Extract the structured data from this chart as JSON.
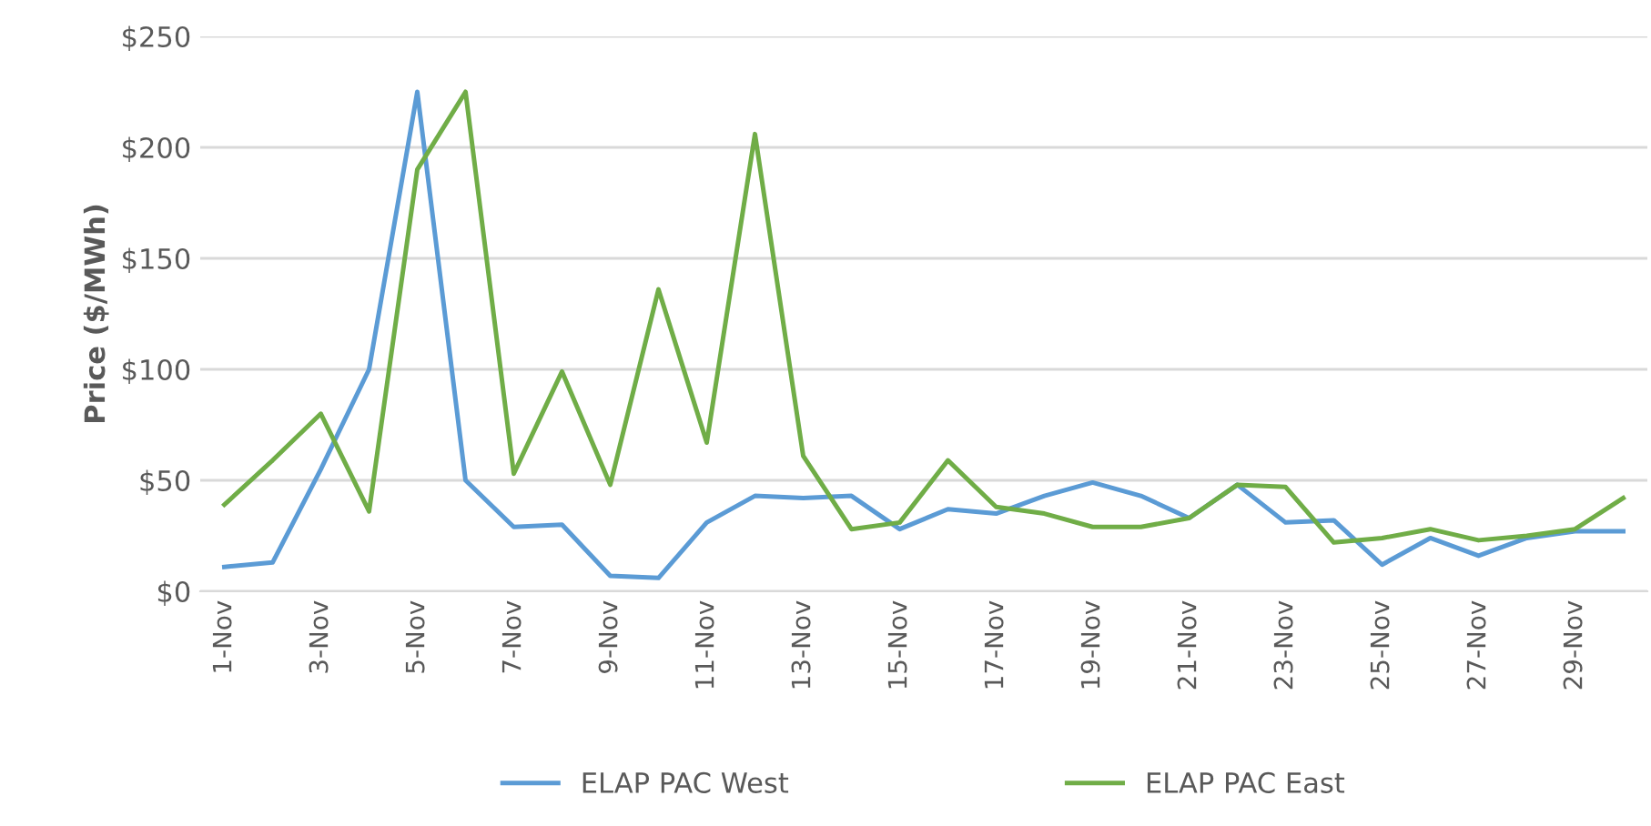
{
  "chart_data": {
    "type": "line",
    "ylabel": "Price ($/MWh)",
    "categories": [
      "1-Nov",
      null,
      "3-Nov",
      null,
      "5-Nov",
      null,
      "7-Nov",
      null,
      "9-Nov",
      null,
      "11-Nov",
      null,
      "13-Nov",
      null,
      "15-Nov",
      null,
      "17-Nov",
      null,
      "19-Nov",
      null,
      "21-Nov",
      null,
      "23-Nov",
      null,
      "25-Nov",
      null,
      "27-Nov",
      null,
      "29-Nov",
      null
    ],
    "series": [
      {
        "name": "ELAP PAC West",
        "color": "#5b9bd5",
        "values": [
          11,
          13,
          55,
          100,
          225,
          50,
          29,
          30,
          7,
          6,
          31,
          43,
          42,
          43,
          28,
          37,
          35,
          43,
          49,
          43,
          33,
          48,
          31,
          32,
          12,
          24,
          16,
          24,
          27,
          27
        ]
      },
      {
        "name": "ELAP PAC East",
        "color": "#70ad47",
        "values": [
          39,
          59,
          80,
          36,
          190,
          225,
          53,
          99,
          48,
          136,
          67,
          206,
          61,
          28,
          31,
          59,
          38,
          35,
          29,
          29,
          33,
          48,
          47,
          22,
          24,
          28,
          23,
          25,
          28,
          42
        ]
      }
    ],
    "ylim": [
      0,
      250
    ],
    "yticks": [
      {
        "value": 0,
        "label": "$0"
      },
      {
        "value": 50,
        "label": "$50"
      },
      {
        "value": 100,
        "label": "$100"
      },
      {
        "value": 150,
        "label": "$150"
      },
      {
        "value": 200,
        "label": "$200"
      },
      {
        "value": 250,
        "label": "$250"
      }
    ],
    "grid": "y",
    "legend": "bottom",
    "marker": "none",
    "line_style": "solid"
  }
}
